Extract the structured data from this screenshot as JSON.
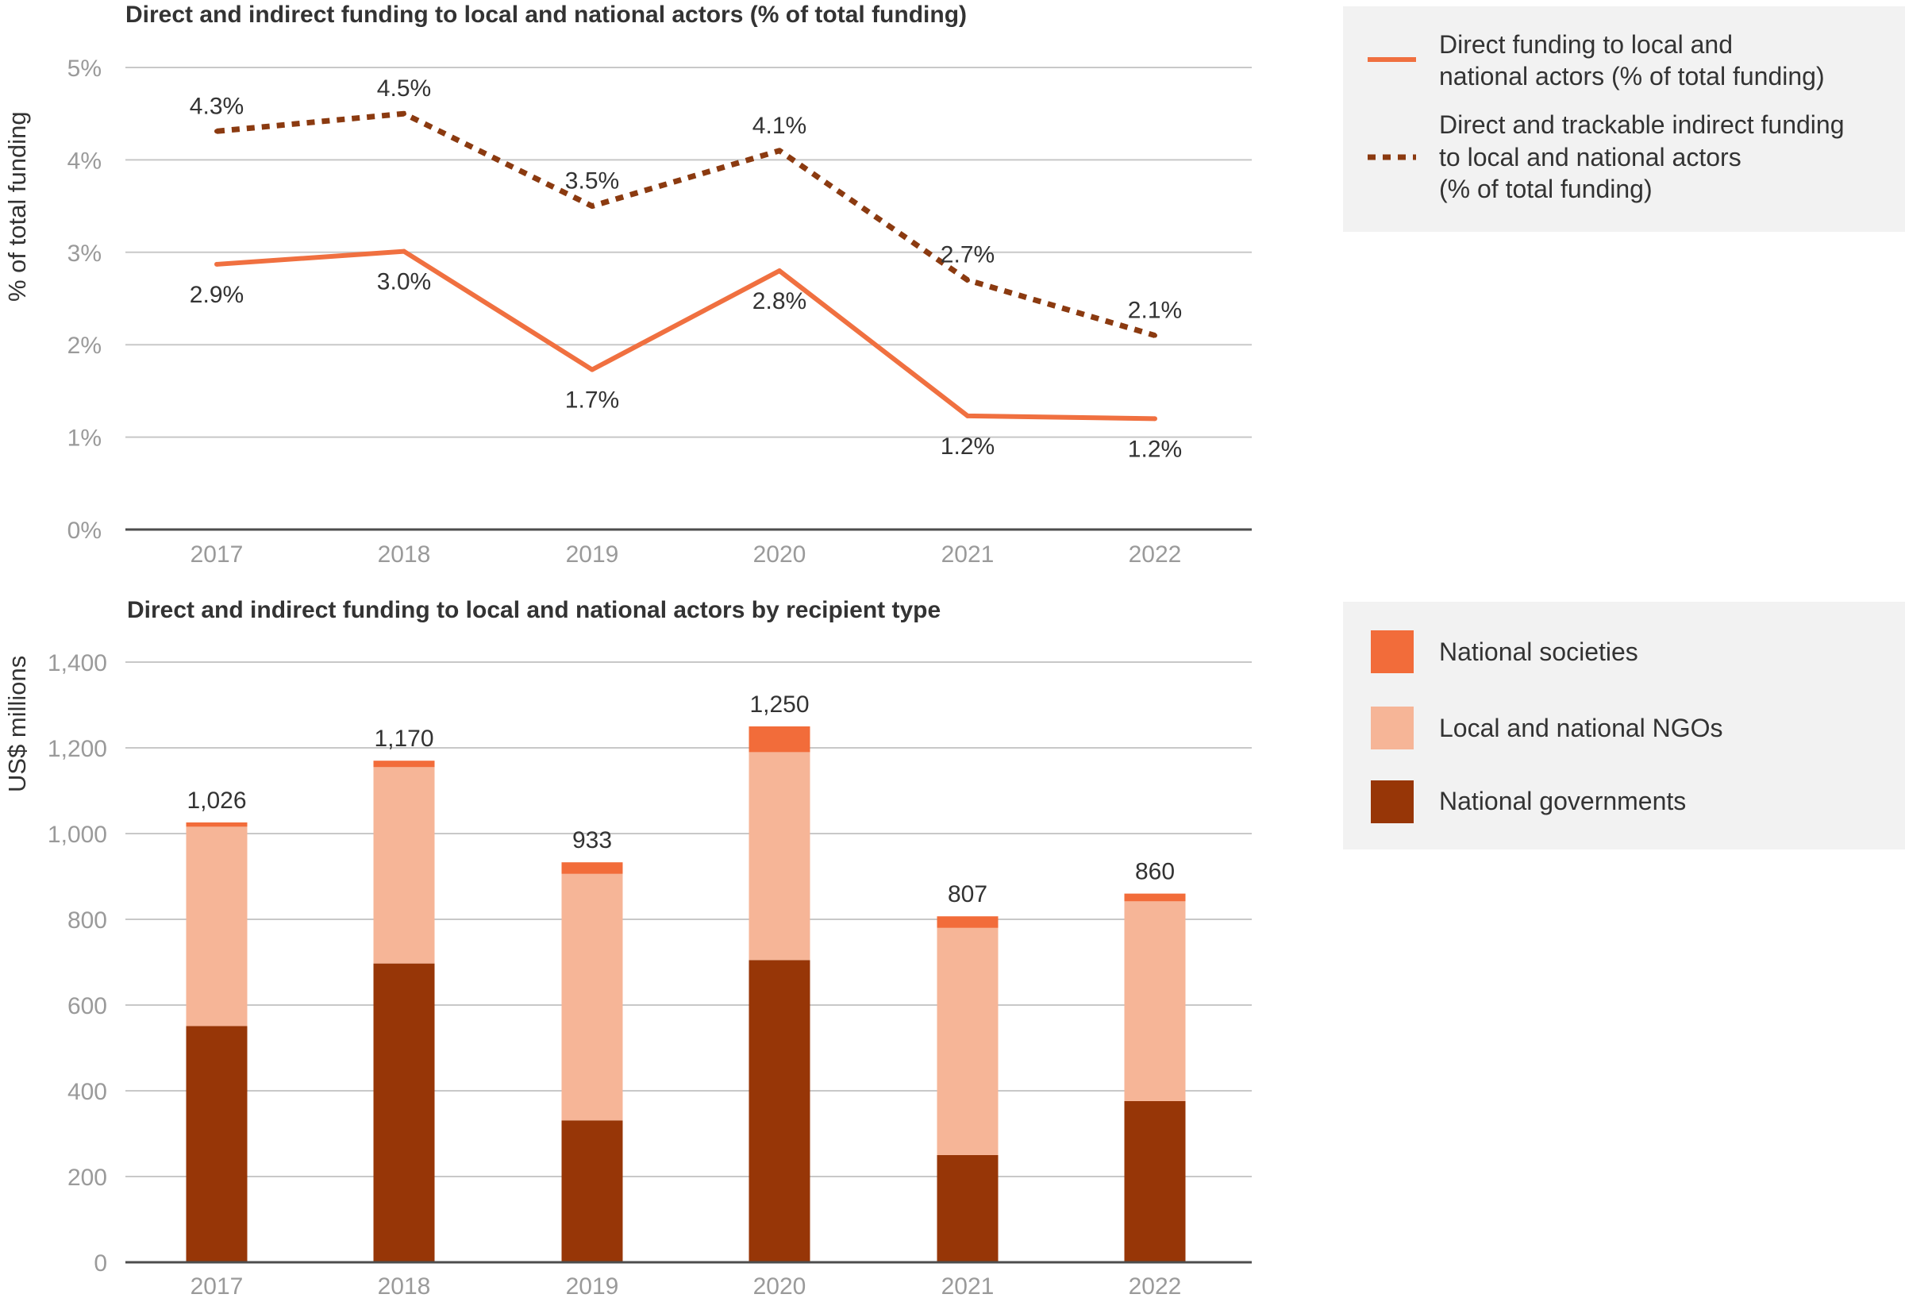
{
  "chart_data": [
    {
      "type": "line",
      "title": "Direct and indirect funding to local and national actors (% of total funding)",
      "ylabel": "% of total funding",
      "xlabel": "",
      "ylim": [
        0,
        5
      ],
      "y_tick_labels": [
        "0%",
        "1%",
        "2%",
        "3%",
        "4%",
        "5%"
      ],
      "categories": [
        "2017",
        "2018",
        "2019",
        "2020",
        "2021",
        "2022"
      ],
      "series": [
        {
          "name": "Direct funding to local and national actors (% of total funding)",
          "legend_lines": [
            "Direct funding to local and",
            "national actors (% of total funding)"
          ],
          "style": "solid",
          "color": "#f07040",
          "values": [
            2.87,
            3.01,
            1.73,
            2.8,
            1.23,
            1.2
          ],
          "labels": [
            "2.9%",
            "3.0%",
            "1.7%",
            "2.8%",
            "1.2%",
            "1.2%"
          ]
        },
        {
          "name": "Direct and trackable indirect funding to local and national actors (% of total funding)",
          "legend_lines": [
            "Direct and trackable indirect funding",
            "to local and national actors",
            "(% of total funding)"
          ],
          "style": "dotted",
          "color": "#8b3a10",
          "values": [
            4.31,
            4.5,
            3.5,
            4.1,
            2.7,
            2.1
          ],
          "labels": [
            "4.3%",
            "4.5%",
            "3.5%",
            "4.1%",
            "2.7%",
            "2.1%"
          ]
        }
      ],
      "grid": true,
      "legend_position": "right"
    },
    {
      "type": "bar",
      "stacked": true,
      "title": "Direct and indirect funding to local and national actors by recipient type",
      "ylabel": "US$ millions",
      "xlabel": "",
      "ylim": [
        0,
        1400
      ],
      "y_tick_labels": [
        "0",
        "200",
        "400",
        "600",
        "800",
        "1,000",
        "1,200",
        "1,400"
      ],
      "categories": [
        "2017",
        "2018",
        "2019",
        "2020",
        "2021",
        "2022"
      ],
      "series": [
        {
          "name": "National governments",
          "color": "#973607",
          "values": [
            551,
            697,
            331,
            705,
            250,
            376
          ]
        },
        {
          "name": "Local and national NGOs",
          "color": "#f6b597",
          "values": [
            465,
            458,
            575,
            485,
            530,
            466
          ]
        },
        {
          "name": "National societies",
          "color": "#f26c3a",
          "values": [
            10,
            15,
            27,
            60,
            27,
            18
          ]
        }
      ],
      "totals": [
        1026,
        1170,
        933,
        1250,
        807,
        860
      ],
      "total_labels": [
        "1,026",
        "1,170",
        "933",
        "1,250",
        "807",
        "860"
      ],
      "legend_order": [
        "National societies",
        "Local and national NGOs",
        "National governments"
      ],
      "grid": true,
      "legend_position": "right"
    }
  ]
}
